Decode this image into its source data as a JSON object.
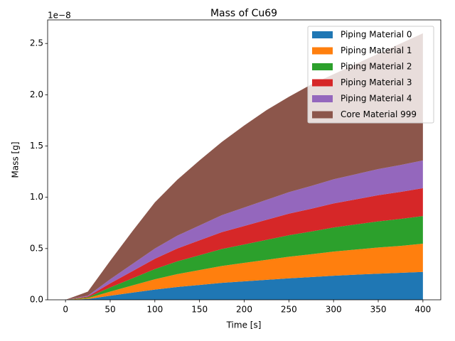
{
  "chart_data": {
    "type": "stacked_area",
    "title": "Mass of Cu69",
    "x_label": "Time [s]",
    "y_label": "Mass [g]",
    "y_offset_label": "1e−8",
    "x": [
      0,
      25,
      50,
      75,
      100,
      125,
      150,
      175,
      200,
      225,
      250,
      275,
      300,
      325,
      350,
      375,
      400
    ],
    "series": [
      {
        "name": "Piping Material 0",
        "color": "#1f77b4",
        "values": [
          0,
          0.008,
          0.04,
          0.07,
          0.1,
          0.125,
          0.145,
          0.165,
          0.18,
          0.195,
          0.21,
          0.222,
          0.235,
          0.245,
          0.255,
          0.263,
          0.272
        ]
      },
      {
        "name": "Piping Material 1",
        "color": "#ff7f0e",
        "values": [
          0,
          0.008,
          0.04,
          0.07,
          0.1,
          0.125,
          0.145,
          0.165,
          0.18,
          0.195,
          0.21,
          0.222,
          0.235,
          0.245,
          0.255,
          0.263,
          0.275
        ]
      },
      {
        "name": "Piping Material 2",
        "color": "#2ca02c",
        "values": [
          0,
          0.008,
          0.04,
          0.07,
          0.1,
          0.125,
          0.145,
          0.165,
          0.18,
          0.195,
          0.21,
          0.222,
          0.235,
          0.245,
          0.255,
          0.263,
          0.27
        ]
      },
      {
        "name": "Piping Material 3",
        "color": "#d62728",
        "values": [
          0,
          0.008,
          0.04,
          0.07,
          0.1,
          0.125,
          0.145,
          0.165,
          0.18,
          0.195,
          0.21,
          0.222,
          0.235,
          0.245,
          0.255,
          0.263,
          0.272
        ]
      },
      {
        "name": "Piping Material 4",
        "color": "#9467bd",
        "values": [
          0,
          0.008,
          0.04,
          0.07,
          0.1,
          0.125,
          0.145,
          0.165,
          0.18,
          0.195,
          0.21,
          0.222,
          0.235,
          0.245,
          0.255,
          0.263,
          0.27
        ]
      },
      {
        "name": "Core Material 999",
        "color": "#8c564b",
        "values": [
          0,
          0.04,
          0.18,
          0.32,
          0.45,
          0.545,
          0.635,
          0.715,
          0.8,
          0.875,
          0.93,
          0.99,
          1.025,
          1.075,
          1.125,
          1.185,
          1.24
        ]
      }
    ],
    "xlim": [
      -20,
      420
    ],
    "xticks": [
      0,
      50,
      100,
      150,
      200,
      250,
      300,
      350,
      400
    ],
    "ylim": [
      0,
      2.73
    ],
    "yticks": [
      {
        "value": 0,
        "label": "0.0"
      },
      0.5,
      {
        "value": 1,
        "label": "1.0"
      },
      1.5,
      {
        "value": 2,
        "label": "2.0"
      },
      2.5
    ],
    "legend": "upper right",
    "grid": false
  }
}
